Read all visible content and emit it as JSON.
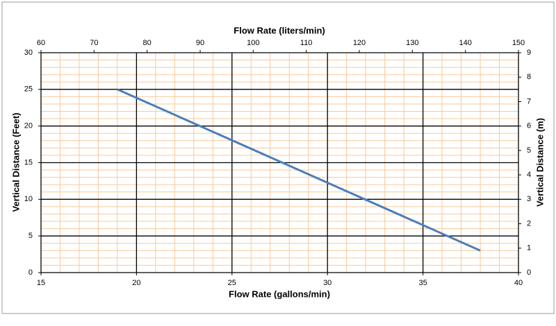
{
  "chart_data": {
    "type": "line",
    "x_title": "Flow Rate (gallons/min)",
    "x2_title": "Flow Rate (liters/min)",
    "y_title": "Vertical Distance (Feet)",
    "y2_title": "Vertical Distance (m)",
    "x": [
      19,
      38
    ],
    "series": [
      {
        "color": "#4a7ebb",
        "values": [
          25,
          3
        ]
      }
    ],
    "xlim": [
      15,
      40
    ],
    "xticks": [
      15,
      20,
      25,
      30,
      35,
      40
    ],
    "x2lim": [
      60,
      150
    ],
    "x2ticks": [
      60,
      70,
      80,
      90,
      100,
      110,
      120,
      130,
      140,
      150
    ],
    "ylim": [
      0,
      30
    ],
    "yticks": [
      0,
      5,
      10,
      15,
      20,
      25,
      30
    ],
    "y2lim": [
      0,
      9
    ],
    "y2ticks": [
      0,
      1,
      2,
      3,
      4,
      5,
      6,
      7,
      8,
      9
    ],
    "grid": true,
    "grid_color": "#000000",
    "x_minor_step": 1,
    "y_minor_step": 1,
    "minor_grid_color": "#f9c89b"
  }
}
